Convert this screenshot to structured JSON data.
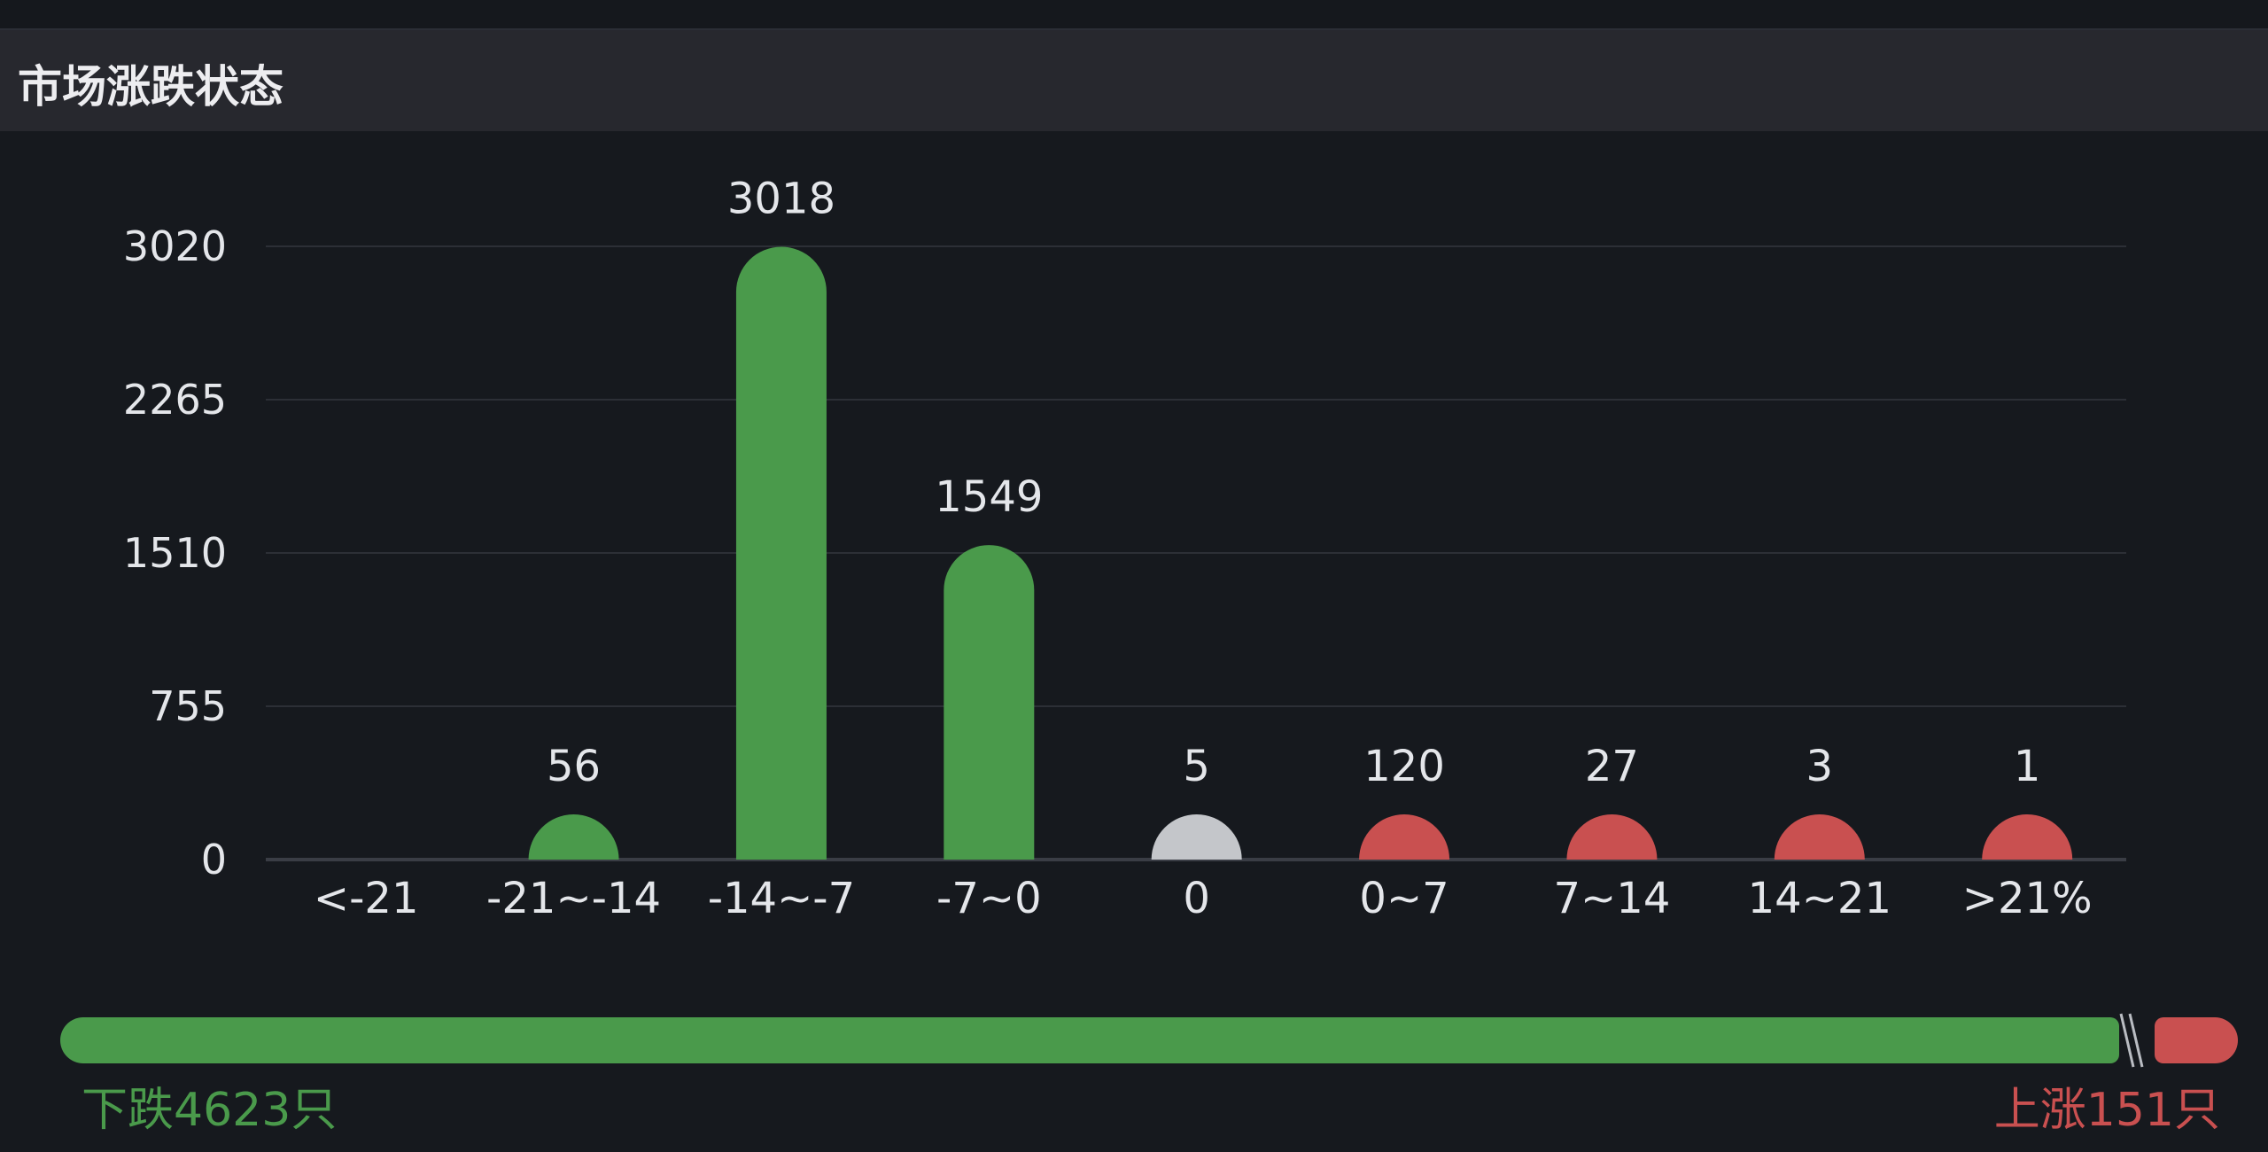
{
  "panel": {
    "title": "市场涨跌状态"
  },
  "chart_data": {
    "type": "bar",
    "categories": [
      "<-21",
      "-21~-14",
      "-14~-7",
      "-7~0",
      "0",
      "0~7",
      "7~14",
      "14~21",
      ">21%"
    ],
    "values": [
      0,
      56,
      3018,
      1549,
      5,
      120,
      27,
      3,
      1
    ],
    "bar_colors": [
      "#4a9a4b",
      "#4a9a4b",
      "#4a9a4b",
      "#4a9a4b",
      "#c4c6ca",
      "#c95050",
      "#c95050",
      "#c95050",
      "#c95050"
    ],
    "y_ticks": [
      0,
      755,
      1510,
      2265,
      3020
    ],
    "ylim": [
      0,
      3020
    ],
    "grid": true,
    "show_value_labels": true,
    "hide_label_for_zero": true
  },
  "ratio_bar": {
    "down_count": 4623,
    "up_count": 151,
    "down_label": "下跌4623只",
    "up_label": "上涨151只",
    "down_color": "#4a9a4b",
    "up_color": "#c95050"
  }
}
